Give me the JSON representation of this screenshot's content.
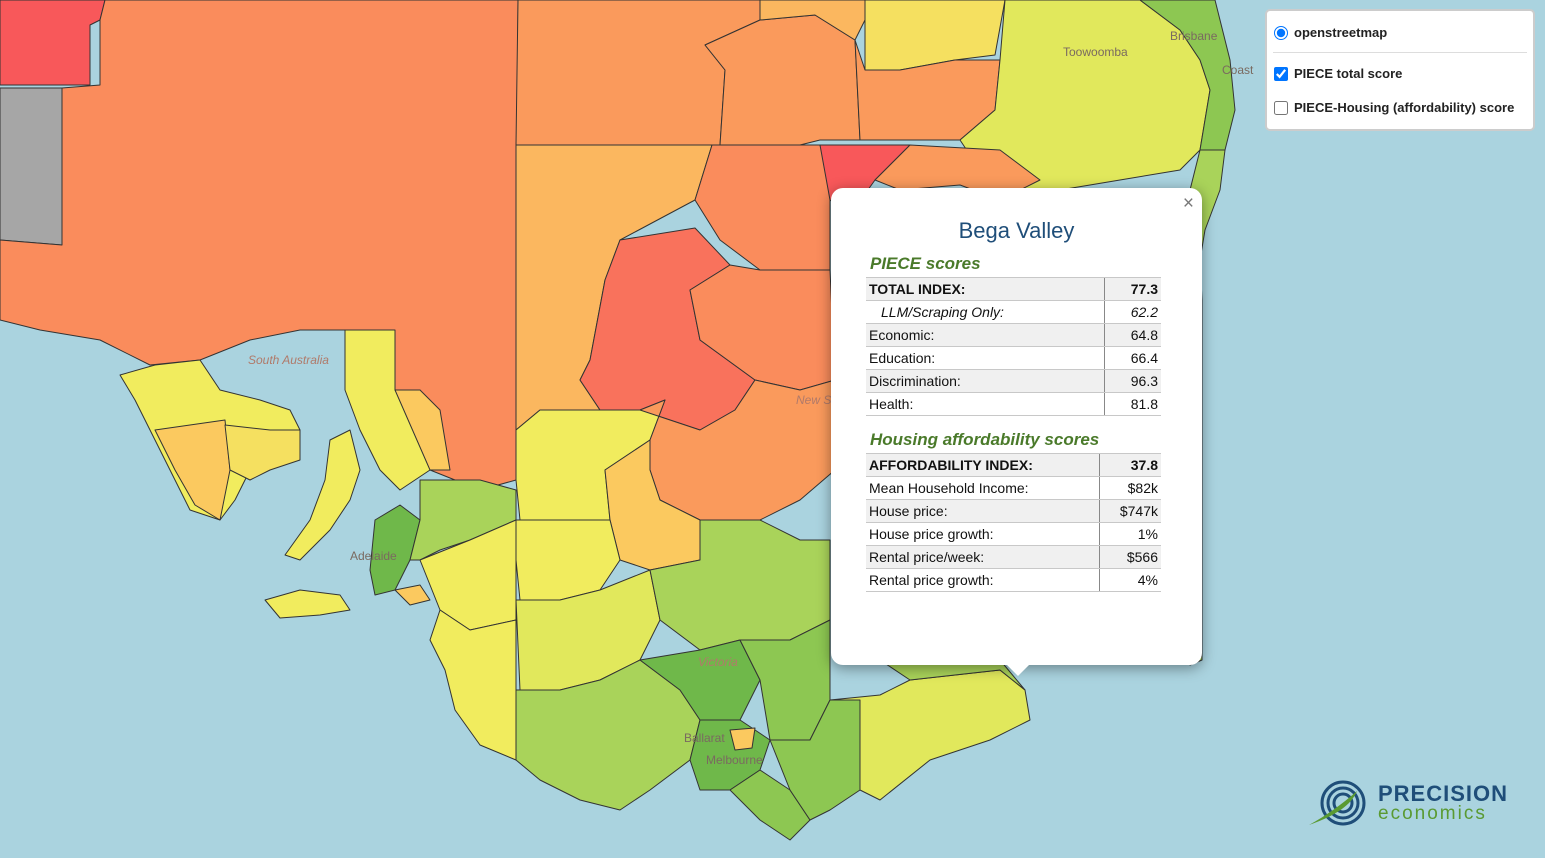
{
  "map_labels": {
    "south_australia": "South Australia",
    "adelaide": "Adelaide",
    "new_south_wales": "New S Wa",
    "victoria": "Victoria",
    "melbourne": "Melbourne",
    "ballarat": "Ballarat",
    "toowoomba": "Toowoomba",
    "brisbane": "Brisbane",
    "gold_coast": "Coast"
  },
  "layer_control": {
    "base_layer": {
      "label": "openstreetmap",
      "selected": true
    },
    "overlays": [
      {
        "label": "PIECE total score",
        "checked": true
      },
      {
        "label": "PIECE-Housing (affordability) score",
        "checked": false
      }
    ]
  },
  "popup": {
    "close_symbol": "×",
    "region": "Bega Valley",
    "piece_heading": "PIECE scores",
    "piece_rows": [
      {
        "label": "TOTAL INDEX:",
        "value": "77.3"
      },
      {
        "label": "LLM/Scraping Only:",
        "value": "62.2"
      },
      {
        "label": "Economic:",
        "value": "64.8"
      },
      {
        "label": "Education:",
        "value": "66.4"
      },
      {
        "label": "Discrimination:",
        "value": "96.3"
      },
      {
        "label": "Health:",
        "value": "81.8"
      }
    ],
    "housing_heading": "Housing affordability scores",
    "housing_rows": [
      {
        "label": "AFFORDABILITY INDEX:",
        "value": "37.8"
      },
      {
        "label": "Mean Household Income:",
        "value": "$82k"
      },
      {
        "label": "House price:",
        "value": "$747k"
      },
      {
        "label": "House price growth:",
        "value": "1%"
      },
      {
        "label": "Rental price/week:",
        "value": "$566"
      },
      {
        "label": "Rental price growth:",
        "value": "4%"
      }
    ]
  },
  "logo": {
    "line1": "PRECISION",
    "line2": "economics"
  },
  "colors": {
    "sea": "#aad3df",
    "score_low": "#f8585a",
    "score_midlow": "#fa8c5c",
    "score_mid": "#fbc95f",
    "score_midhigh": "#f1ec5e",
    "score_high": "#a9d35a",
    "score_top": "#6fb84a",
    "no_data": "#a6a6a6",
    "title_blue": "#1f4e79",
    "heading_green": "#4a7a2a"
  }
}
